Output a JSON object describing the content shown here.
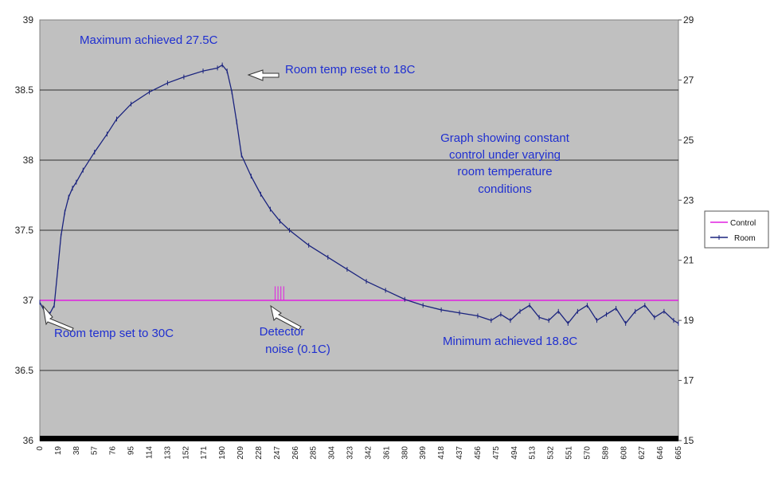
{
  "chart_data": {
    "type": "line",
    "title": "",
    "xlabel": "",
    "ylabel": "",
    "y2label": "",
    "x_ticks": [
      0,
      19,
      38,
      57,
      76,
      95,
      114,
      133,
      152,
      171,
      190,
      209,
      228,
      247,
      266,
      285,
      304,
      323,
      342,
      361,
      380,
      399,
      418,
      437,
      456,
      475,
      494,
      513,
      532,
      551,
      570,
      589,
      608,
      627,
      646,
      665
    ],
    "xlim": [
      0,
      665
    ],
    "ylim_left": [
      36,
      39
    ],
    "yticks_left": [
      36,
      36.5,
      37,
      37.5,
      38,
      38.5,
      39
    ],
    "ylim_right": [
      15,
      29
    ],
    "yticks_right": [
      15,
      17,
      19,
      21,
      23,
      25,
      27,
      29
    ],
    "grid": true,
    "legend_position": "right",
    "series": [
      {
        "name": "Control",
        "axis": "left",
        "color": "#e020e0",
        "x": [
          0,
          665
        ],
        "values": [
          37,
          37
        ],
        "noise_spike": {
          "x": [
            245,
            248,
            251,
            254
          ],
          "values": [
            37.1,
            37.1,
            37.1,
            37.1
          ]
        }
      },
      {
        "name": "Room",
        "axis": "right",
        "color": "#1a237e",
        "x": [
          0,
          5,
          10,
          15,
          19,
          22,
          26,
          30,
          34,
          38,
          45,
          57,
          70,
          80,
          95,
          114,
          133,
          150,
          170,
          185,
          190,
          195,
          200,
          205,
          210,
          220,
          230,
          240,
          250,
          260,
          280,
          300,
          320,
          340,
          360,
          380,
          399,
          418,
          437,
          456,
          470,
          480,
          490,
          500,
          510,
          520,
          530,
          540,
          550,
          560,
          570,
          580,
          590,
          600,
          610,
          620,
          630,
          640,
          650,
          660,
          665
        ],
        "values": [
          19.6,
          19.3,
          19.2,
          19.5,
          20.8,
          21.8,
          22.6,
          23.1,
          23.4,
          23.6,
          24.0,
          24.6,
          25.2,
          25.7,
          26.2,
          26.6,
          26.9,
          27.1,
          27.3,
          27.4,
          27.5,
          27.3,
          26.6,
          25.6,
          24.5,
          23.8,
          23.2,
          22.7,
          22.3,
          22.0,
          21.5,
          21.1,
          20.7,
          20.3,
          20.0,
          19.7,
          19.5,
          19.35,
          19.25,
          19.15,
          19.0,
          19.2,
          19.0,
          19.3,
          19.5,
          19.1,
          19.0,
          19.3,
          18.9,
          19.3,
          19.5,
          19.0,
          19.2,
          19.4,
          18.9,
          19.3,
          19.5,
          19.1,
          19.3,
          19.0,
          18.9
        ]
      }
    ],
    "annotations": [
      "Maximum achieved 27.5C",
      "Room temp reset to 18C",
      "Graph showing constant",
      "control under varying",
      "room temperature",
      "conditions",
      "Room temp set to 30C",
      "Detector",
      "noise (0.1C)",
      "Minimum achieved 18.8C"
    ]
  },
  "colors": {
    "plot_background": "#c0c0c0",
    "gridline": "#000000",
    "annotation_text": "#1f2fd0"
  }
}
